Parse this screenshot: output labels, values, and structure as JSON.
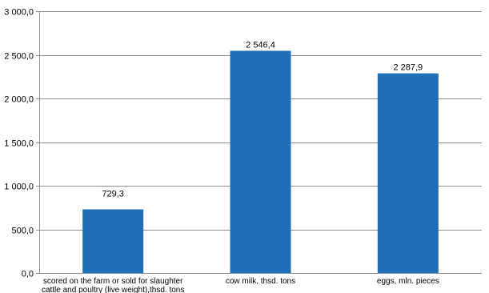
{
  "chart_data": {
    "type": "bar",
    "categories": [
      [
        "scored on the farm or sold for slaughter",
        "cattle and poultry (live weight),thsd. tons"
      ],
      [
        "cow milk, thsd. tons"
      ],
      [
        "eggs, mln. pieces"
      ]
    ],
    "values": [
      729.3,
      2546.4,
      2287.9
    ],
    "data_labels": [
      "729,3",
      "2 546,4",
      "2 287,9"
    ],
    "ylim": [
      0,
      3000
    ],
    "yticks": [
      0,
      500,
      1000,
      1500,
      2000,
      2500,
      3000
    ],
    "ytick_labels": [
      "0,0",
      "500,0",
      "1 000,0",
      "1 500,0",
      "2 000,0",
      "2 500,0",
      "3 000,0"
    ],
    "grid": true,
    "legend": "none",
    "colors": {
      "bar": "#1f70b8",
      "grid": "#8c8c8c",
      "axis": "#8c8c8c"
    }
  }
}
